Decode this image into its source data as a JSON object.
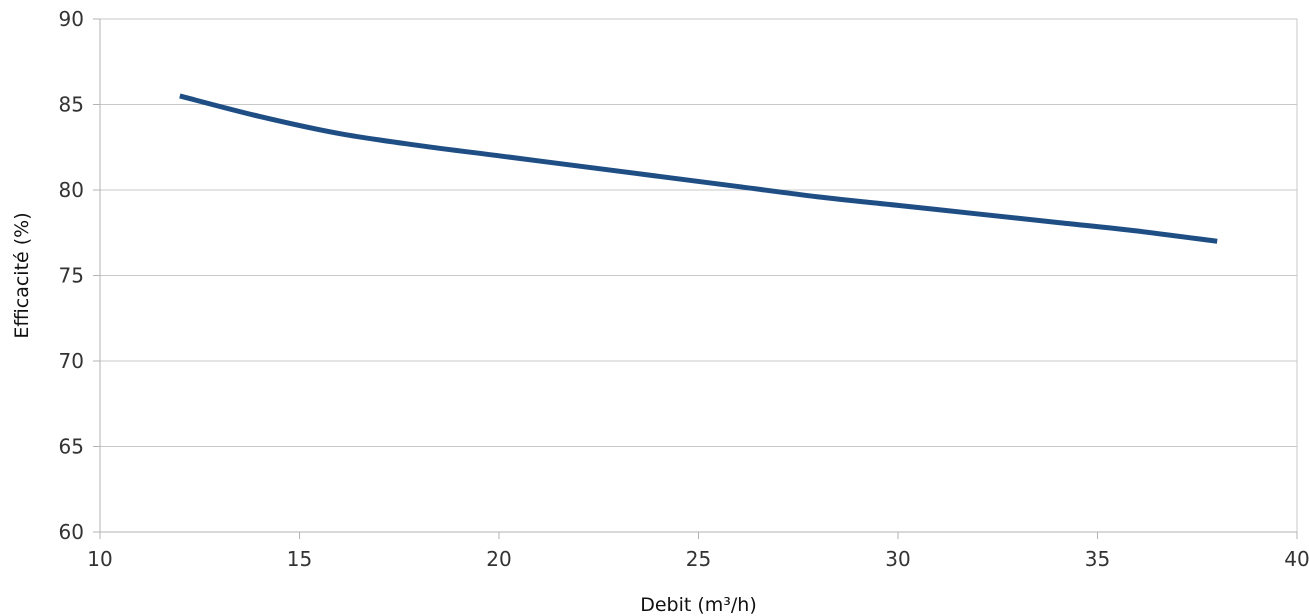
{
  "chart_data": {
    "type": "line",
    "title": "",
    "xlabel": "Debit (m³/h)",
    "ylabel": "Efficacité (%)",
    "xlim": [
      10,
      40
    ],
    "ylim": [
      60,
      90
    ],
    "x_ticks": [
      10,
      15,
      20,
      25,
      30,
      35,
      40
    ],
    "y_ticks": [
      60,
      65,
      70,
      75,
      80,
      85,
      90
    ],
    "grid": {
      "horizontal": true,
      "vertical": false
    },
    "legend": "none",
    "colors": {
      "series": "#1f4e85",
      "grid": "#c8c8c8",
      "axis": "#b3b3b3"
    },
    "series": [
      {
        "x": [
          12,
          14,
          16,
          18,
          20,
          22,
          24,
          26,
          28,
          30,
          32,
          34,
          36,
          38
        ],
        "y": [
          85.5,
          84.3,
          83.3,
          82.6,
          82.0,
          81.4,
          80.8,
          80.2,
          79.6,
          79.1,
          78.6,
          78.1,
          77.6,
          77.0
        ]
      }
    ]
  }
}
